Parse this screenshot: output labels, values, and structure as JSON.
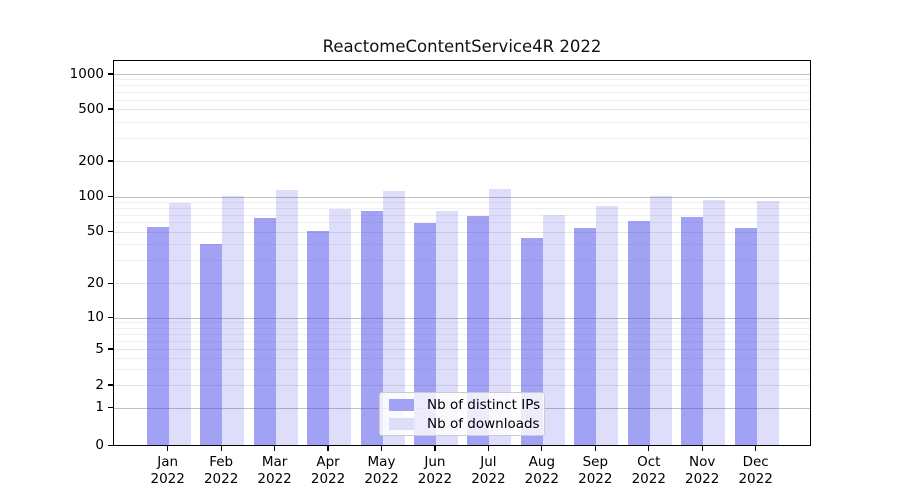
{
  "figure": {
    "title": "ReactomeContentService4R 2022"
  },
  "chart_data": {
    "type": "bar",
    "title": "ReactomeContentService4R 2022",
    "categories": [
      "Jan",
      "Feb",
      "Mar",
      "Apr",
      "May",
      "Jun",
      "Jul",
      "Aug",
      "Sep",
      "Oct",
      "Nov",
      "Dec"
    ],
    "category_year": "2022",
    "series": [
      {
        "name": "Nb of distinct IPs",
        "values": [
          55,
          40,
          65,
          51,
          75,
          59,
          68,
          45,
          54,
          62,
          67,
          54
        ],
        "color": "rgba(70,70,235,0.5)",
        "color_hex_on_white": "#a2a2f5"
      },
      {
        "name": "Nb of downloads",
        "values": [
          88,
          101,
          113,
          79,
          111,
          76,
          117,
          69,
          84,
          102,
          94,
          91
        ],
        "color": "rgba(70,70,235,0.18)",
        "color_hex_on_white": "#dedef9"
      }
    ],
    "xlabel": "",
    "ylabel": "",
    "yscale": "log-with-zero (symlog-like)",
    "yticks": [
      0,
      1,
      2,
      5,
      10,
      20,
      50,
      100,
      200,
      500,
      1000
    ],
    "minor_gridlines": [
      3,
      4,
      6,
      7,
      8,
      9,
      30,
      40,
      60,
      70,
      80,
      90,
      300,
      400,
      600,
      700,
      800,
      900
    ],
    "ylim": [
      0,
      1290
    ],
    "grid": true,
    "legend_position": "lower center",
    "grid_colors": {
      "decade": "#c0c0c0",
      "labeled": "#e4e4e4",
      "minor": "#efefef"
    }
  }
}
